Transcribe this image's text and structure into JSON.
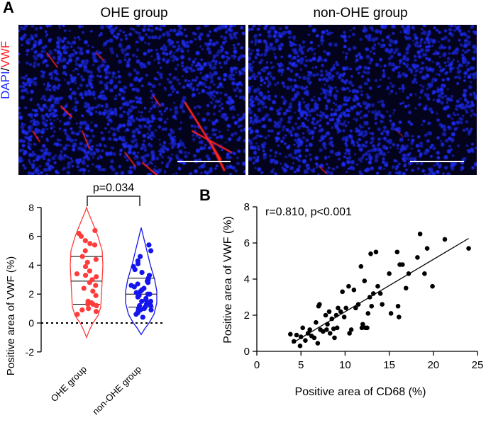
{
  "panel_a": {
    "label": "A",
    "titles": [
      "OHE group",
      "non-OHE group"
    ],
    "stain_label_part1": "DAPI",
    "stain_separator": "/",
    "stain_label_part2": "VWF",
    "colors": {
      "dapi": "#1f2cff",
      "vwf": "#ff2020",
      "background": "#04031c"
    }
  },
  "violin": {
    "ylabel": "Positive area of VWF (%)",
    "pvalue": "p=0.034",
    "ylim": [
      -2,
      8
    ],
    "yticks": [
      "-2",
      "0",
      "2",
      "4",
      "6",
      "8"
    ],
    "groups": [
      "OHE group",
      "non-OHE group"
    ],
    "colors": [
      "#ff3b3b",
      "#1414ee"
    ]
  },
  "chart_data": {
    "type": "scatter",
    "panel": "B",
    "title": "r=0.810, p<0.001",
    "xlabel": "Positive area of CD68 (%)",
    "ylabel": "Positive area of VWF (%)",
    "xlim": [
      0,
      25
    ],
    "ylim": [
      0,
      8
    ],
    "xticks": [
      "0",
      "5",
      "10",
      "15",
      "20",
      "25"
    ],
    "yticks": [
      "0",
      "2",
      "4",
      "6",
      "8"
    ],
    "fit_line": {
      "x": [
        4,
        24
      ],
      "y": [
        0.45,
        6.25
      ]
    },
    "points": [
      [
        3.8,
        0.95
      ],
      [
        4.2,
        0.55
      ],
      [
        4.5,
        0.9
      ],
      [
        4.9,
        0.3
      ],
      [
        5.0,
        0.8
      ],
      [
        5.2,
        1.3
      ],
      [
        5.5,
        0.6
      ],
      [
        5.8,
        1.0
      ],
      [
        6.0,
        1.2
      ],
      [
        6.2,
        0.85
      ],
      [
        6.5,
        0.75
      ],
      [
        6.7,
        1.6
      ],
      [
        6.9,
        0.45
      ],
      [
        7.0,
        2.5
      ],
      [
        7.1,
        2.6
      ],
      [
        7.2,
        1.2
      ],
      [
        7.5,
        1.1
      ],
      [
        7.8,
        2.0
      ],
      [
        7.9,
        1.2
      ],
      [
        8.0,
        1.5
      ],
      [
        8.2,
        2.2
      ],
      [
        8.3,
        1.0
      ],
      [
        8.5,
        1.8
      ],
      [
        8.7,
        1.25
      ],
      [
        8.8,
        0.75
      ],
      [
        9.0,
        2.0
      ],
      [
        9.1,
        1.3
      ],
      [
        9.2,
        2.4
      ],
      [
        9.5,
        2.2
      ],
      [
        9.7,
        3.3
      ],
      [
        9.9,
        1.9
      ],
      [
        10.1,
        2.4
      ],
      [
        10.4,
        3.6
      ],
      [
        10.5,
        1.0
      ],
      [
        10.7,
        1.2
      ],
      [
        11.0,
        3.4
      ],
      [
        11.2,
        2.4
      ],
      [
        11.5,
        2.6
      ],
      [
        11.8,
        4.7
      ],
      [
        11.9,
        1.3
      ],
      [
        12.0,
        1.5
      ],
      [
        12.2,
        3.9
      ],
      [
        12.3,
        1.3
      ],
      [
        12.5,
        1.3
      ],
      [
        12.6,
        2.1
      ],
      [
        12.8,
        3.0
      ],
      [
        12.9,
        5.4
      ],
      [
        13.0,
        2.5
      ],
      [
        13.2,
        3.2
      ],
      [
        13.5,
        5.5
      ],
      [
        13.7,
        3.6
      ],
      [
        14.0,
        3.2
      ],
      [
        14.2,
        2.6
      ],
      [
        15.0,
        4.3
      ],
      [
        15.2,
        2.1
      ],
      [
        15.9,
        5.5
      ],
      [
        16.0,
        2.5
      ],
      [
        16.1,
        1.9
      ],
      [
        16.2,
        4.8
      ],
      [
        16.5,
        4.8
      ],
      [
        16.9,
        3.5
      ],
      [
        17.2,
        4.3
      ],
      [
        18.2,
        5.2
      ],
      [
        18.5,
        6.5
      ],
      [
        19.0,
        4.3
      ],
      [
        19.3,
        5.7
      ],
      [
        19.9,
        3.6
      ],
      [
        21.3,
        6.2
      ],
      [
        24.0,
        5.7
      ]
    ]
  }
}
